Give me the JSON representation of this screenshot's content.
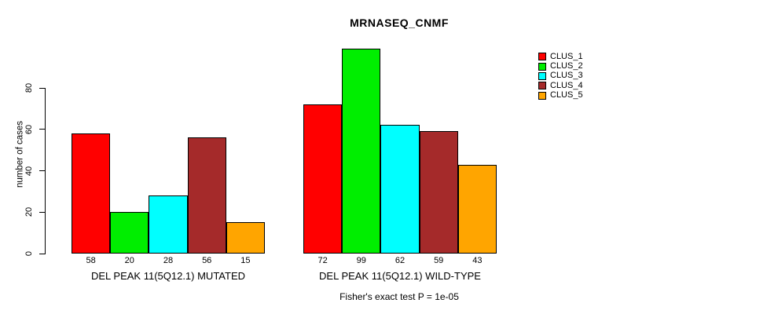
{
  "chart_data": {
    "type": "bar",
    "title": "MRNASEQ_CNMF",
    "ylabel": "number of cases",
    "xlabel": "",
    "categories": [
      "DEL PEAK 11(5Q12.1) MUTATED",
      "DEL PEAK 11(5Q12.1) WILD-TYPE"
    ],
    "series": [
      {
        "name": "CLUS_1",
        "color": "#FF0000",
        "values": [
          58,
          72
        ]
      },
      {
        "name": "CLUS_2",
        "color": "#00EE00",
        "values": [
          20,
          99
        ]
      },
      {
        "name": "CLUS_3",
        "color": "#00FFFF",
        "values": [
          28,
          62
        ]
      },
      {
        "name": "CLUS_4",
        "color": "#A52A2A",
        "values": [
          56,
          59
        ]
      },
      {
        "name": "CLUS_5",
        "color": "#FFA500",
        "values": [
          15,
          43
        ]
      }
    ],
    "yticks": [
      0,
      20,
      40,
      60,
      80
    ],
    "ylim": [
      0,
      100
    ],
    "grid": false,
    "legend_position": "right",
    "bar_value_labels": true,
    "footnote": "Fisher's exact test P = 1e-05"
  }
}
